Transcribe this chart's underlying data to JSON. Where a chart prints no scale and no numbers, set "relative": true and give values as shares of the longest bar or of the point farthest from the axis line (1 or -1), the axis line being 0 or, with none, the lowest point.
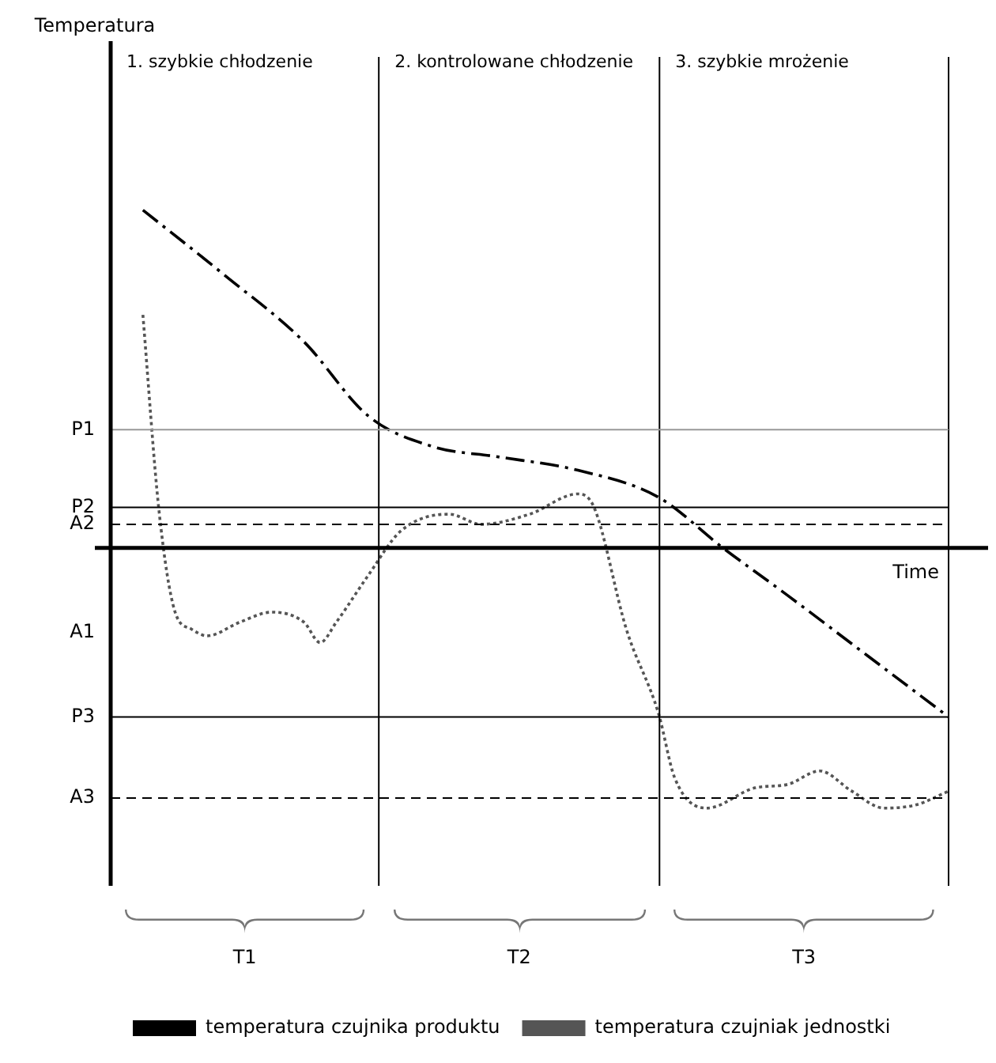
{
  "chart_data": {
    "type": "line",
    "relative": true,
    "xlabel": "Time",
    "grid": false,
    "legend": "bottom",
    "marker": "none",
    "categories": [
      null,
      null,
      null,
      null,
      null,
      null,
      null,
      null,
      null,
      null,
      null,
      null,
      null,
      null,
      null,
      null,
      null,
      null,
      null,
      null,
      null,
      null,
      null,
      null,
      null,
      null,
      null,
      null,
      null,
      null,
      null,
      null,
      null,
      null,
      null,
      null,
      null,
      null,
      null,
      null,
      null,
      null,
      null,
      null,
      null,
      null,
      null,
      null,
      null,
      null,
      null,
      null,
      null
    ],
    "series": [
      {
        "name": "temperatura czujnika produktu",
        "color": "#000000",
        "line_style": "dashed",
        "values": [
          null,
          null,
          1.0,
          null,
          null,
          null,
          null,
          0.81,
          null,
          null,
          null,
          null,
          0.61,
          null,
          null,
          null,
          0.39,
          null,
          null,
          null,
          0.3,
          null,
          null,
          null,
          0.27,
          null,
          null,
          null,
          null,
          0.23,
          null,
          null,
          null,
          null,
          0.15,
          null,
          null,
          null,
          0.0,
          null,
          null,
          null,
          -0.14,
          null,
          null,
          null,
          null,
          -0.32,
          null,
          null,
          null,
          null,
          -0.5
        ]
      },
      {
        "name": "temperatura czujniak jednostki",
        "color": "#555555",
        "line_style": "dotted",
        "values": [
          null,
          null,
          0.69,
          0.11,
          -0.19,
          -0.24,
          -0.26,
          null,
          -0.22,
          null,
          -0.19,
          null,
          -0.22,
          -0.28,
          -0.22,
          null,
          -0.08,
          null,
          0.05,
          null,
          null,
          0.1,
          null,
          0.07,
          null,
          null,
          0.1,
          null,
          null,
          0.16,
          0.12,
          null,
          -0.24,
          null,
          -0.49,
          -0.68,
          null,
          -0.77,
          null,
          null,
          -0.71,
          null,
          -0.7,
          null,
          -0.66,
          null,
          -0.72,
          null,
          -0.77,
          null,
          -0.76,
          null,
          -0.72
        ]
      }
    ],
    "ref_lines": [
      {
        "axis": "y",
        "value": 0.35,
        "label": "P1",
        "color": "#999999"
      },
      {
        "axis": "y",
        "value": 0.12,
        "label": "P2",
        "color": "#000000"
      },
      {
        "axis": "y",
        "value": 0.07,
        "label": "A2",
        "color": "#000000",
        "line_style": "dashed"
      },
      {
        "axis": "y",
        "value": -0.5,
        "label": "P3",
        "color": "#000000"
      },
      {
        "axis": "y",
        "value": -0.74,
        "label": "A3",
        "color": "#000000",
        "line_style": "dashed"
      }
    ],
    "annotations": [
      "1. szybkie chłodzenie",
      "2. kontrolowane chłodzenie",
      "3. szybkie mrożenie",
      "T1",
      "T2",
      "T3",
      "A1",
      "Temperatura"
    ]
  }
}
